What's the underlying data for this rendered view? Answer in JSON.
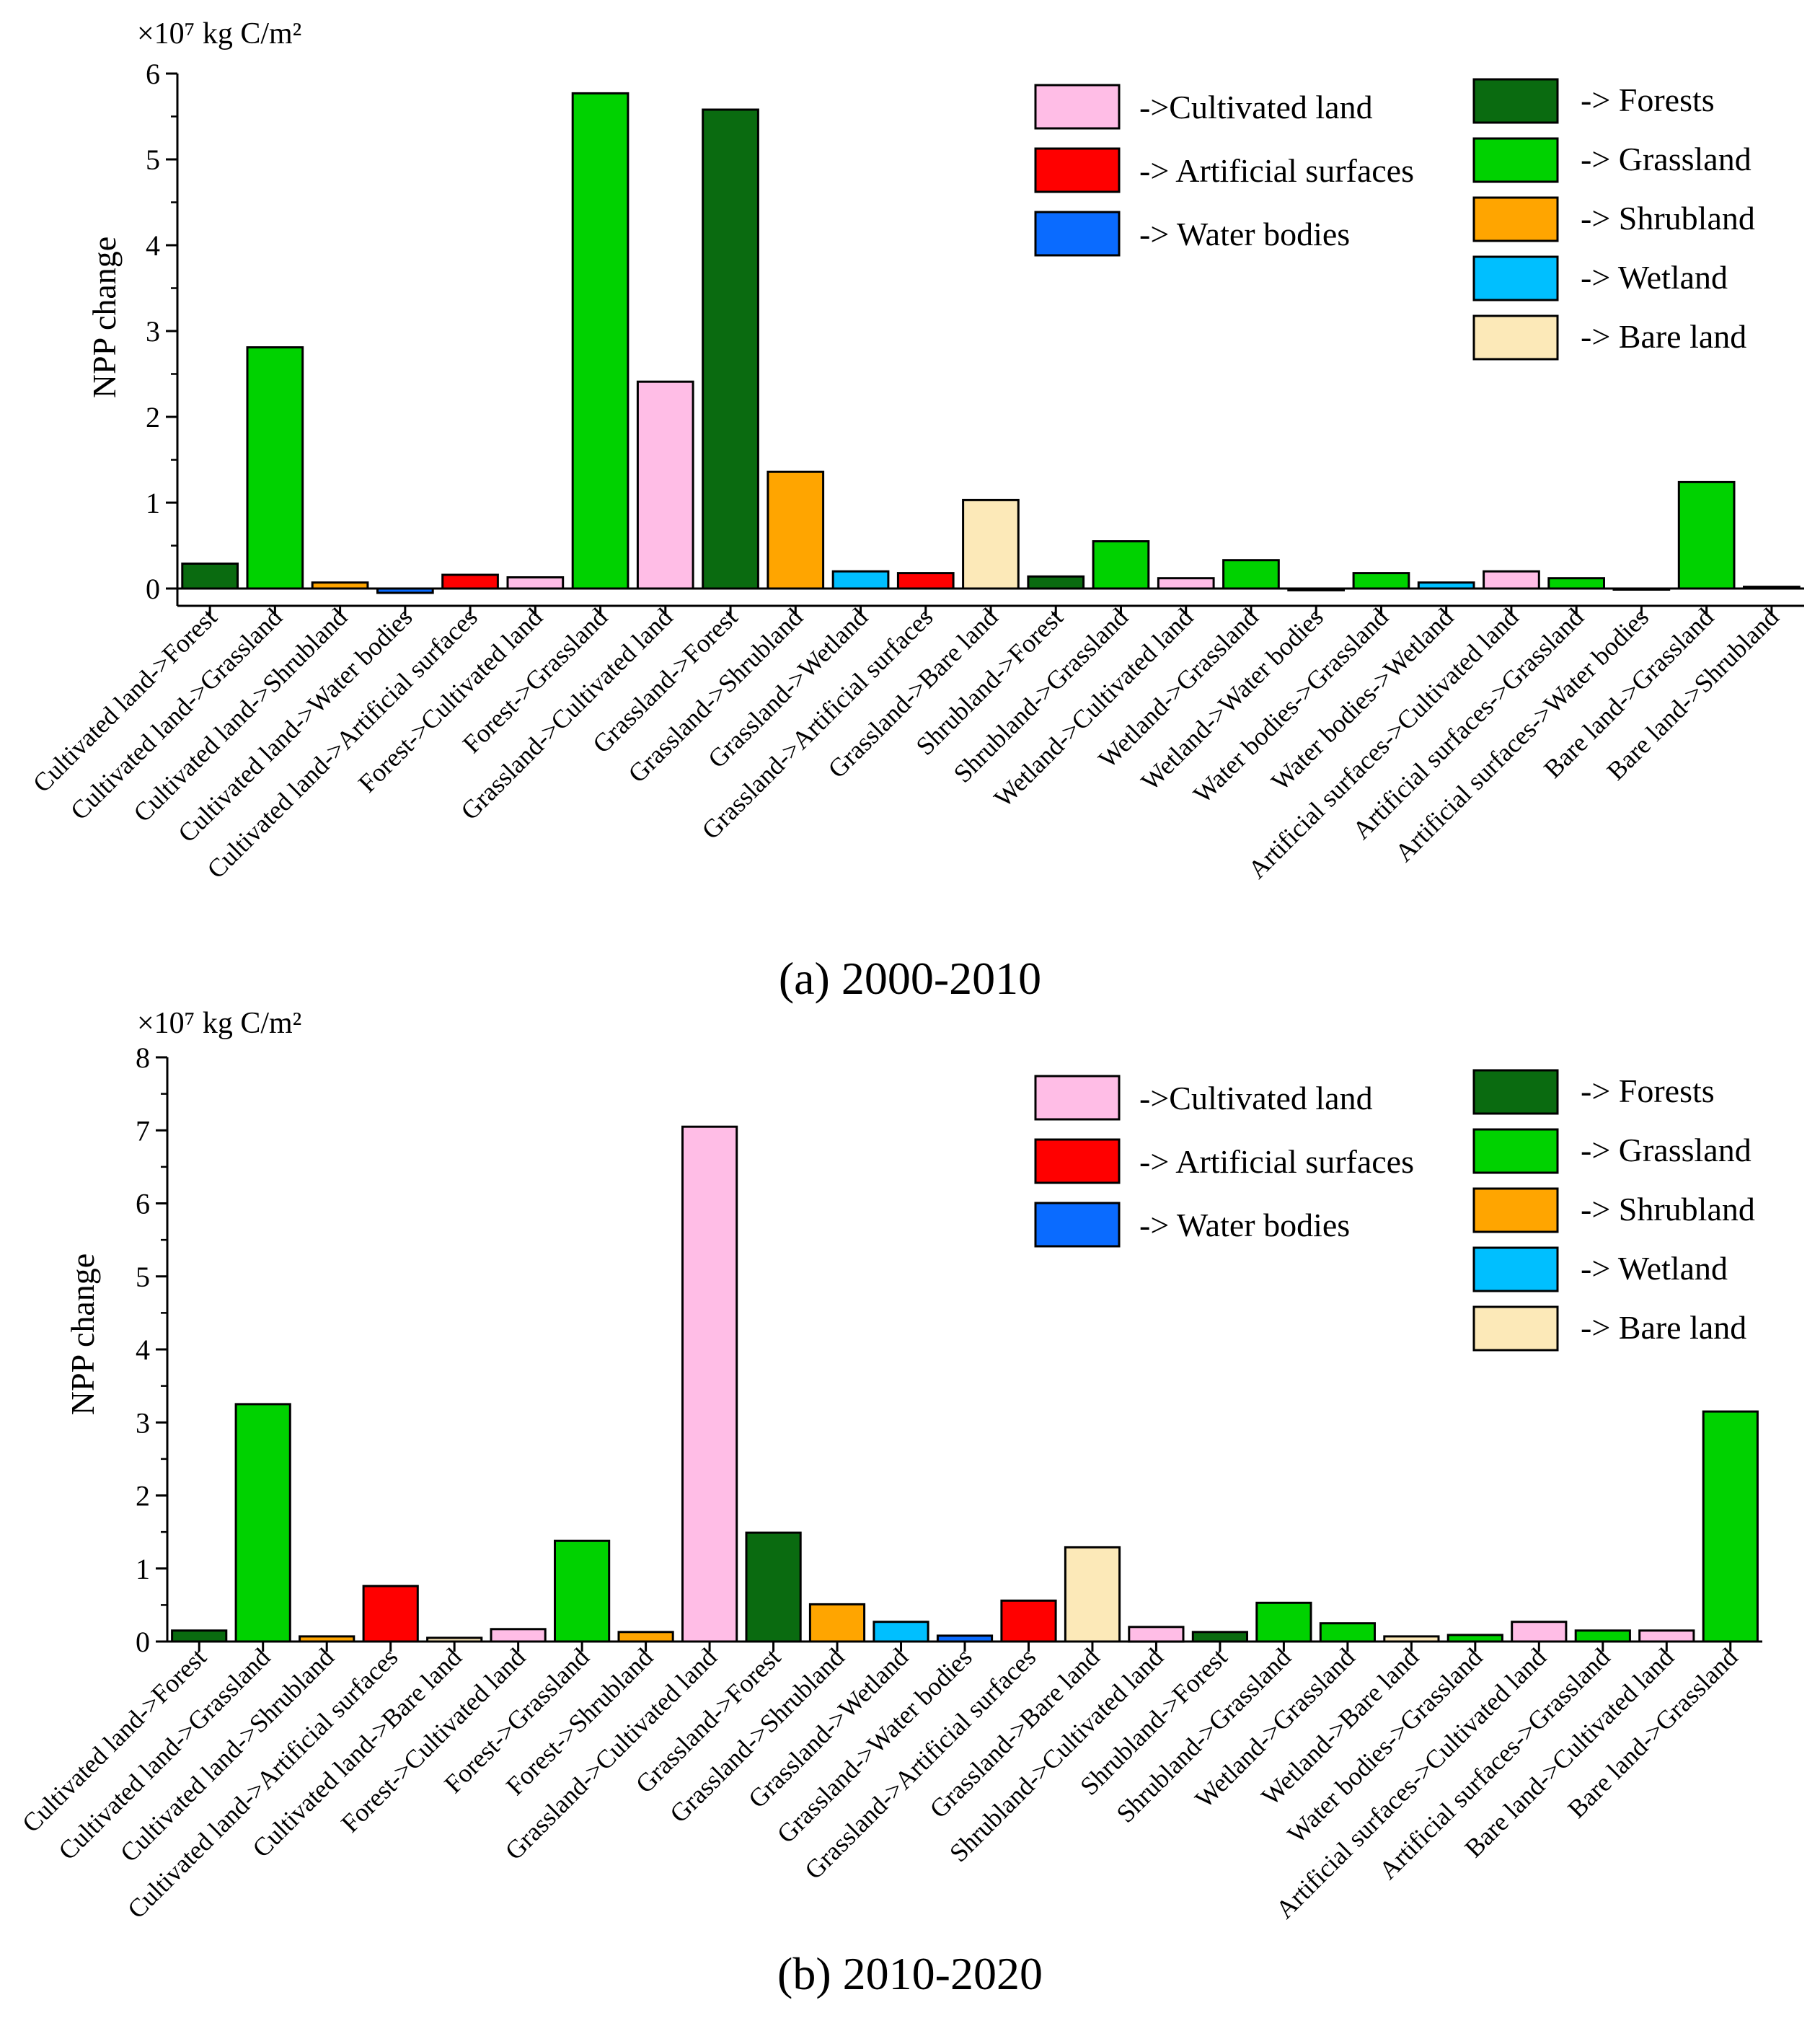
{
  "colors": {
    "forests": "#0a6b10",
    "grassland": "#00d200",
    "shrubland": "#ffa500",
    "wetland": "#00bfff",
    "bare": "#fce9b8",
    "cultivated": "#ffbde6",
    "artificial": "#ff0000",
    "water": "#0a6bff"
  },
  "legend": {
    "left": [
      {
        "label": "->Cultivated land",
        "color": "#ffbde6"
      },
      {
        "label": "-> Artificial surfaces",
        "color": "#ff0000"
      },
      {
        "label": "-> Water bodies",
        "color": "#0a6bff"
      }
    ],
    "right": [
      {
        "label": "-> Forests",
        "color": "#0a6b10"
      },
      {
        "label": "-> Grassland",
        "color": "#00d200"
      },
      {
        "label": "-> Shrubland",
        "color": "#ffa500"
      },
      {
        "label": "-> Wetland",
        "color": "#00bfff"
      },
      {
        "label": "-> Bare land",
        "color": "#fce9b8"
      }
    ]
  },
  "chart_data": [
    {
      "type": "bar",
      "title": "(a) 2000-2010",
      "unit": "×10⁷ kg C/m²",
      "ylabel": "NPP change",
      "ylim": [
        -0.2,
        6
      ],
      "yticks": [
        0,
        1,
        2,
        3,
        4,
        5,
        6
      ],
      "categories": [
        "Cultivated land->Forest",
        "Cultivated land->Grassland",
        "Cultivated land->Shrubland",
        "Cultivated land->Water bodies",
        "Cultivated land->Artificial surfaces",
        "Forest->Cultivated land",
        "Forest->Grassland",
        "Grassland->Cultivated land",
        "Grassland->Forest",
        "Grassland->Shrubland",
        "Grassland->Wetland",
        "Grassland->Artificial surfaces",
        "Grassland->Bare land",
        "Shrubland->Forest",
        "Shrubland->Grassland",
        "Wetland->Cultivated land",
        "Wetland->Grassland",
        "Wetland->Water bodies",
        "Water bodies->Grassland",
        "Water bodies->Wetland",
        "Artificial surfaces->Cultivated land",
        "Artificial surfaces->Grassland",
        "Artificial surfaces->Water bodies",
        "Bare land->Grassland",
        "Bare land->Shrubland"
      ],
      "values": [
        0.29,
        2.81,
        0.07,
        -0.05,
        0.16,
        0.13,
        5.77,
        2.41,
        5.58,
        1.36,
        0.2,
        0.18,
        1.03,
        0.14,
        0.55,
        0.12,
        0.33,
        -0.02,
        0.18,
        0.07,
        0.2,
        0.12,
        0.0,
        1.24,
        0.02
      ],
      "colors": [
        "forests",
        "grassland",
        "shrubland",
        "water",
        "artificial",
        "cultivated",
        "grassland",
        "cultivated",
        "forests",
        "shrubland",
        "wetland",
        "artificial",
        "bare",
        "forests",
        "grassland",
        "cultivated",
        "grassland",
        "water",
        "grassland",
        "wetland",
        "cultivated",
        "grassland",
        "water",
        "grassland",
        "shrubland"
      ]
    },
    {
      "type": "bar",
      "title": "(b) 2010-2020",
      "unit": "×10⁷ kg C/m²",
      "ylabel": "NPP change",
      "ylim": [
        0,
        8
      ],
      "yticks": [
        0,
        1,
        2,
        3,
        4,
        5,
        6,
        7,
        8
      ],
      "categories": [
        "Cultivated land->Forest",
        "Cultivated land->Grassland",
        "Cultivated land->Shrubland",
        "Cultivated land->Artificial surfaces",
        "Cultivated land->Bare land",
        "Forest->Cultivated land",
        "Forest->Grassland",
        "Forest->Shrubland",
        "Grassland->Cultivated land",
        "Grassland->Forest",
        "Grassland->Shrubland",
        "Grassland->Wetland",
        "Grassland->Water bodies",
        "Grassland->Artificial surfaces",
        "Grassland->Bare land",
        "Shrubland->Cultivated land",
        "Shrubland->Forest",
        "Shrubland->Grassland",
        "Wetland->Grassland",
        "Wetland->Bare land",
        "Water bodies->Grassland",
        "Artificial surfaces->Cultivated land",
        "Artificial surfaces->Grassland",
        "Bare land->Cultivated land",
        "Bare land->Grassland"
      ],
      "values": [
        0.15,
        3.25,
        0.07,
        0.76,
        0.05,
        0.17,
        1.38,
        0.13,
        7.05,
        1.49,
        0.51,
        0.27,
        0.08,
        0.56,
        1.29,
        0.2,
        0.13,
        0.53,
        0.25,
        0.07,
        0.09,
        0.27,
        0.15,
        0.15,
        3.15
      ],
      "colors": [
        "forests",
        "grassland",
        "shrubland",
        "artificial",
        "bare",
        "cultivated",
        "grassland",
        "shrubland",
        "cultivated",
        "forests",
        "shrubland",
        "wetland",
        "water",
        "artificial",
        "bare",
        "cultivated",
        "forests",
        "grassland",
        "grassland",
        "bare",
        "grassland",
        "cultivated",
        "grassland",
        "cultivated",
        "grassland"
      ]
    }
  ]
}
